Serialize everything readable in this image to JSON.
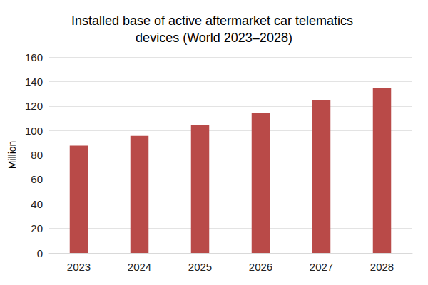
{
  "chart_data": {
    "type": "bar",
    "title": "Installed base of active aftermarket car telematics devices (World 2023–2028)",
    "y_label": "Million",
    "categories": [
      "2023",
      "2024",
      "2025",
      "2026",
      "2027",
      "2028"
    ],
    "values": [
      87.5,
      95.5,
      104.5,
      114.5,
      124.5,
      135
    ],
    "color": "#b94a48",
    "ylim": [
      0,
      160
    ],
    "yticks": [
      0,
      20,
      40,
      60,
      80,
      100,
      120,
      140,
      160
    ],
    "grid": true
  }
}
